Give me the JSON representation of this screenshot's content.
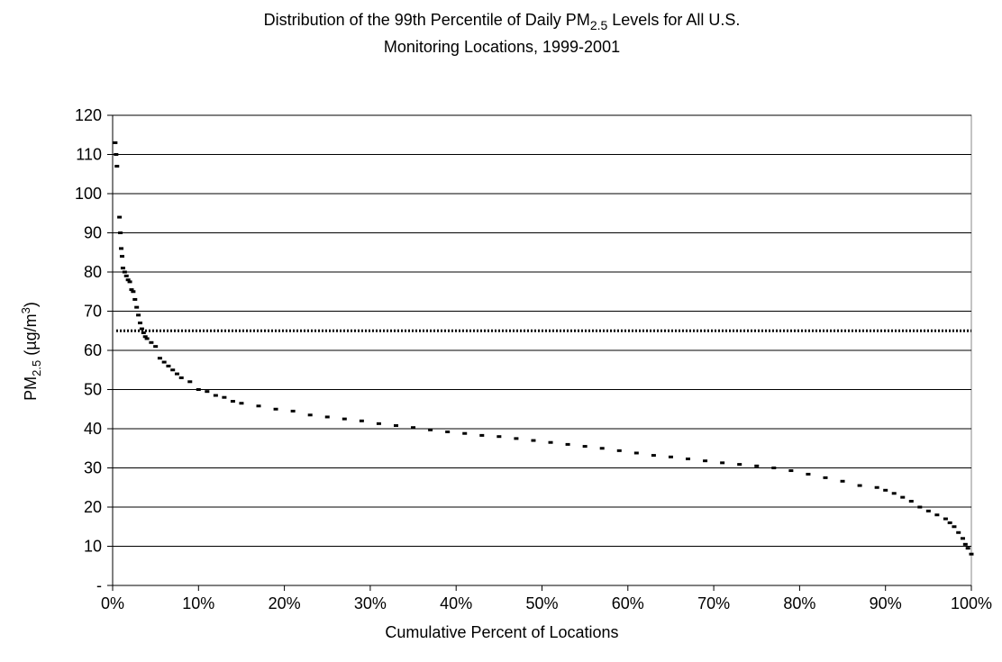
{
  "chart_data": {
    "type": "scatter",
    "title": {
      "line1": [
        "Distribution of the 99th Percentile of Daily PM",
        "2.5",
        "Levels for All U.S."
      ],
      "line2": "Monitoring Locations, 1999-2001"
    },
    "x_label": "Cumulative Percent of Locations",
    "y_label": [
      "PM",
      "2.5",
      "(µg/m",
      "3",
      ")"
    ],
    "xlim": [
      0,
      100
    ],
    "xticks": [
      {
        "value": 0,
        "label": "0%"
      },
      {
        "value": 10,
        "label": "10%"
      },
      {
        "value": 20,
        "label": "20%"
      },
      {
        "value": 30,
        "label": "30%"
      },
      {
        "value": 40,
        "label": "40%"
      },
      {
        "value": 50,
        "label": "50%"
      },
      {
        "value": 60,
        "label": "60%"
      },
      {
        "value": 70,
        "label": "70%"
      },
      {
        "value": 80,
        "label": "80%"
      },
      {
        "value": 90,
        "label": "90%"
      },
      {
        "value": 100,
        "label": "100%"
      }
    ],
    "ylim": [
      0,
      120
    ],
    "yticks": [
      {
        "value": 0,
        "label": "-"
      },
      10,
      20,
      30,
      40,
      50,
      60,
      70,
      80,
      90,
      100,
      110,
      120
    ],
    "grid": true,
    "color": "#000000",
    "reference_lines": [
      {
        "value": 65
      }
    ],
    "x": [
      0.3,
      0.4,
      0.5,
      0.8,
      0.9,
      1.0,
      1.1,
      1.2,
      1.4,
      1.6,
      1.8,
      2.0,
      2.2,
      2.4,
      2.6,
      2.8,
      3.0,
      3.2,
      3.4,
      3.6,
      3.8,
      4.0,
      4.5,
      5.0,
      5.5,
      6,
      6.5,
      7,
      7.5,
      8,
      9,
      10,
      11,
      12,
      13,
      14,
      15,
      17,
      19,
      21,
      23,
      25,
      27,
      29,
      31,
      33,
      35,
      37,
      39,
      41,
      43,
      45,
      47,
      49,
      51,
      53,
      55,
      57,
      59,
      61,
      63,
      65,
      67,
      69,
      71,
      73,
      75,
      77,
      79,
      81,
      83,
      85,
      87,
      89,
      90,
      91,
      92,
      93,
      94,
      95,
      96,
      97,
      97.5,
      98,
      98.5,
      99,
      99.3,
      99.6,
      100
    ],
    "values": [
      113,
      110,
      107,
      94,
      90,
      86,
      84,
      81,
      80,
      79,
      78,
      77.5,
      75.5,
      75,
      73,
      71,
      69,
      67,
      65.5,
      64.5,
      63.5,
      63,
      62,
      61,
      58,
      57,
      56,
      55,
      54,
      53,
      52,
      50,
      49.5,
      48.5,
      48,
      47,
      46.5,
      45.8,
      45,
      44.5,
      43.5,
      43,
      42.5,
      42,
      41.3,
      40.8,
      40.3,
      39.7,
      39.2,
      38.8,
      38.3,
      38,
      37.5,
      37,
      36.5,
      36,
      35.5,
      35,
      34.4,
      33.8,
      33.2,
      32.8,
      32.3,
      31.8,
      31.3,
      30.9,
      30.5,
      30,
      29.3,
      28.4,
      27.5,
      26.6,
      25.5,
      25,
      24.3,
      23.5,
      22.5,
      21.5,
      20,
      19,
      18,
      17,
      16,
      15,
      13.5,
      12,
      10.5,
      9.5,
      8
    ]
  }
}
